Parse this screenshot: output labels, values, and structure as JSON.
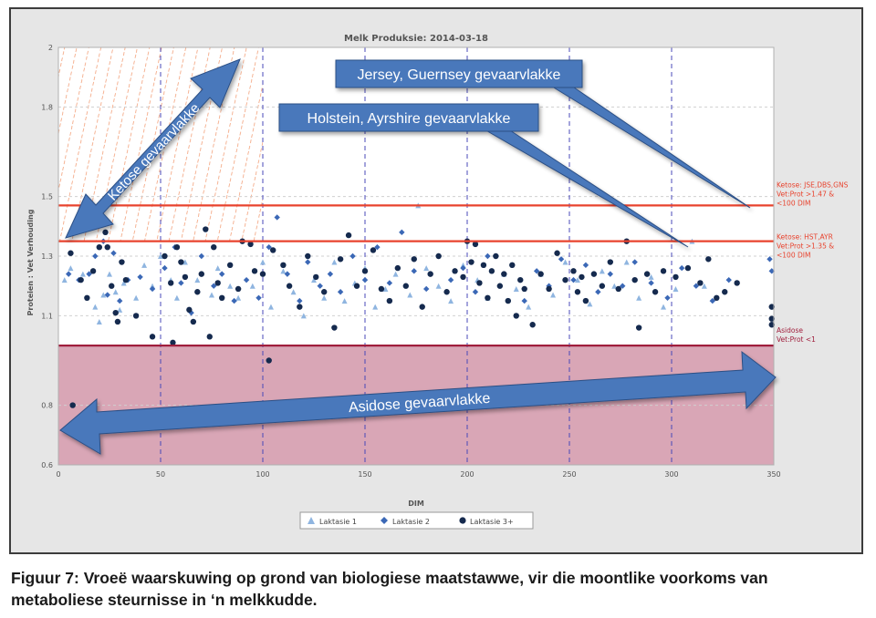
{
  "chart_data": {
    "type": "scatter",
    "title": "Melk Produksie: 2014-03-18",
    "xlabel": "DIM",
    "ylabel": "Proteien : Vet Verhouding",
    "xlim": [
      0,
      350
    ],
    "ylim": [
      0.6,
      2
    ],
    "x_ticks": [
      "0",
      "50",
      "100",
      "150",
      "200",
      "250",
      "300",
      "350"
    ],
    "y_ticks": [
      "0.6",
      "0.8",
      "1.1",
      "1.3",
      "1.5",
      "1.8",
      "2"
    ],
    "grid": true,
    "legend_position": "bottom",
    "reference_lines": [
      {
        "y": 1.47,
        "color": "#e8432e",
        "label_lines": [
          "Ketose: JSE,DBS,GNS",
          "Vet:Prot  >1.47 &",
          "<100 DIM"
        ]
      },
      {
        "y": 1.35,
        "color": "#e8432e",
        "label_lines": [
          "Ketose: HST,AYR",
          "Vet:Prot  >1.35 &",
          "<100 DIM"
        ]
      },
      {
        "y": 1.0,
        "color": "#a01e3c",
        "label_lines": [
          "Asidose",
          "Vet:Prot <1"
        ]
      }
    ],
    "shaded_region": {
      "y_from": 0.6,
      "y_to": 1.0,
      "color": "#d9a6b6"
    },
    "hatched_region": {
      "x_from": 0,
      "x_to": 100,
      "y_from": 1.35,
      "y_to": 2
    },
    "vertical_gridlines": [
      50,
      100,
      150,
      200,
      250,
      300
    ],
    "annotations": [
      {
        "text": "Jersey, Guernsey gevaarvlakke"
      },
      {
        "text": "Holstein, Ayrshire gevaarvlakke"
      },
      {
        "text": "Ketose gevaarvlakke"
      },
      {
        "text": "Asidose gevaarvlakke"
      }
    ],
    "series": [
      {
        "name": "Laktasie 1",
        "marker": "triangle",
        "color": "#8fb5e0",
        "points": [
          [
            3,
            1.22
          ],
          [
            6,
            1.26
          ],
          [
            12,
            1.24
          ],
          [
            18,
            1.13
          ],
          [
            20,
            1.08
          ],
          [
            22,
            1.17
          ],
          [
            25,
            1.24
          ],
          [
            28,
            1.18
          ],
          [
            30,
            1.12
          ],
          [
            32,
            1.21
          ],
          [
            38,
            1.16
          ],
          [
            42,
            1.27
          ],
          [
            46,
            1.2
          ],
          [
            50,
            1.3
          ],
          [
            55,
            1.22
          ],
          [
            58,
            1.16
          ],
          [
            62,
            1.28
          ],
          [
            68,
            1.22
          ],
          [
            75,
            1.17
          ],
          [
            78,
            1.26
          ],
          [
            84,
            1.2
          ],
          [
            88,
            1.16
          ],
          [
            95,
            1.2
          ],
          [
            100,
            1.28
          ],
          [
            104,
            1.13
          ],
          [
            110,
            1.25
          ],
          [
            115,
            1.18
          ],
          [
            120,
            1.1
          ],
          [
            125,
            1.22
          ],
          [
            130,
            1.16
          ],
          [
            135,
            1.28
          ],
          [
            140,
            1.15
          ],
          [
            145,
            1.21
          ],
          [
            150,
            1.26
          ],
          [
            155,
            1.13
          ],
          [
            160,
            1.19
          ],
          [
            165,
            1.24
          ],
          [
            172,
            1.17
          ],
          [
            176,
            1.47
          ],
          [
            180,
            1.26
          ],
          [
            186,
            1.2
          ],
          [
            192,
            1.15
          ],
          [
            198,
            1.27
          ],
          [
            205,
            1.22
          ],
          [
            210,
            1.16
          ],
          [
            218,
            1.24
          ],
          [
            224,
            1.19
          ],
          [
            230,
            1.13
          ],
          [
            236,
            1.24
          ],
          [
            242,
            1.17
          ],
          [
            248,
            1.28
          ],
          [
            254,
            1.22
          ],
          [
            260,
            1.14
          ],
          [
            266,
            1.25
          ],
          [
            272,
            1.2
          ],
          [
            278,
            1.28
          ],
          [
            284,
            1.16
          ],
          [
            290,
            1.23
          ],
          [
            296,
            1.13
          ],
          [
            302,
            1.19
          ],
          [
            310,
            1.35
          ],
          [
            316,
            1.2
          ]
        ]
      },
      {
        "name": "Laktasie 2",
        "marker": "diamond",
        "color": "#3b68b6",
        "points": [
          [
            5,
            1.24
          ],
          [
            10,
            1.22
          ],
          [
            15,
            1.24
          ],
          [
            18,
            1.3
          ],
          [
            22,
            1.35
          ],
          [
            24,
            1.17
          ],
          [
            27,
            1.31
          ],
          [
            30,
            1.15
          ],
          [
            34,
            1.22
          ],
          [
            40,
            1.23
          ],
          [
            46,
            1.19
          ],
          [
            52,
            1.26
          ],
          [
            57,
            1.33
          ],
          [
            60,
            1.21
          ],
          [
            65,
            1.11
          ],
          [
            70,
            1.3
          ],
          [
            76,
            1.2
          ],
          [
            80,
            1.24
          ],
          [
            86,
            1.15
          ],
          [
            92,
            1.22
          ],
          [
            98,
            1.16
          ],
          [
            103,
            1.33
          ],
          [
            107,
            1.43
          ],
          [
            112,
            1.24
          ],
          [
            118,
            1.15
          ],
          [
            122,
            1.28
          ],
          [
            128,
            1.2
          ],
          [
            133,
            1.24
          ],
          [
            138,
            1.18
          ],
          [
            144,
            1.3
          ],
          [
            150,
            1.22
          ],
          [
            156,
            1.33
          ],
          [
            162,
            1.21
          ],
          [
            168,
            1.38
          ],
          [
            174,
            1.25
          ],
          [
            180,
            1.19
          ],
          [
            186,
            1.3
          ],
          [
            192,
            1.22
          ],
          [
            198,
            1.26
          ],
          [
            204,
            1.18
          ],
          [
            210,
            1.3
          ],
          [
            216,
            1.2
          ],
          [
            222,
            1.27
          ],
          [
            228,
            1.15
          ],
          [
            234,
            1.25
          ],
          [
            240,
            1.2
          ],
          [
            246,
            1.29
          ],
          [
            252,
            1.22
          ],
          [
            258,
            1.27
          ],
          [
            264,
            1.18
          ],
          [
            270,
            1.24
          ],
          [
            276,
            1.2
          ],
          [
            282,
            1.28
          ],
          [
            290,
            1.21
          ],
          [
            298,
            1.16
          ],
          [
            305,
            1.26
          ],
          [
            312,
            1.2
          ],
          [
            320,
            1.15
          ],
          [
            328,
            1.22
          ],
          [
            348,
            1.29
          ],
          [
            349,
            1.25
          ]
        ]
      },
      {
        "name": "Laktasie 3+",
        "marker": "circle",
        "color": "#152a4e",
        "points": [
          [
            6,
            1.31
          ],
          [
            7,
            0.8
          ],
          [
            11,
            1.22
          ],
          [
            14,
            1.16
          ],
          [
            17,
            1.25
          ],
          [
            20,
            1.33
          ],
          [
            23,
            1.38
          ],
          [
            24,
            1.33
          ],
          [
            26,
            1.2
          ],
          [
            28,
            1.11
          ],
          [
            29,
            1.08
          ],
          [
            31,
            1.28
          ],
          [
            33,
            1.22
          ],
          [
            38,
            1.1
          ],
          [
            46,
            1.03
          ],
          [
            48,
            0.77
          ],
          [
            52,
            1.3
          ],
          [
            55,
            1.21
          ],
          [
            56,
            1.01
          ],
          [
            58,
            1.33
          ],
          [
            60,
            1.28
          ],
          [
            62,
            1.23
          ],
          [
            64,
            1.12
          ],
          [
            66,
            1.08
          ],
          [
            68,
            1.18
          ],
          [
            70,
            1.24
          ],
          [
            72,
            1.39
          ],
          [
            74,
            1.03
          ],
          [
            76,
            1.33
          ],
          [
            78,
            1.21
          ],
          [
            80,
            1.16
          ],
          [
            84,
            1.27
          ],
          [
            88,
            1.19
          ],
          [
            90,
            1.35
          ],
          [
            94,
            1.34
          ],
          [
            96,
            1.25
          ],
          [
            100,
            1.24
          ],
          [
            103,
            0.95
          ],
          [
            105,
            1.32
          ],
          [
            110,
            1.27
          ],
          [
            113,
            1.2
          ],
          [
            118,
            1.13
          ],
          [
            122,
            1.3
          ],
          [
            126,
            1.23
          ],
          [
            130,
            1.18
          ],
          [
            135,
            1.06
          ],
          [
            138,
            1.29
          ],
          [
            142,
            1.37
          ],
          [
            146,
            1.2
          ],
          [
            150,
            1.25
          ],
          [
            154,
            1.32
          ],
          [
            158,
            1.19
          ],
          [
            162,
            1.15
          ],
          [
            166,
            1.26
          ],
          [
            170,
            1.2
          ],
          [
            174,
            1.29
          ],
          [
            178,
            1.13
          ],
          [
            182,
            1.24
          ],
          [
            186,
            1.3
          ],
          [
            190,
            1.18
          ],
          [
            194,
            1.25
          ],
          [
            198,
            1.23
          ],
          [
            200,
            1.35
          ],
          [
            202,
            1.28
          ],
          [
            204,
            1.34
          ],
          [
            206,
            1.21
          ],
          [
            208,
            1.27
          ],
          [
            210,
            1.16
          ],
          [
            212,
            1.25
          ],
          [
            214,
            1.3
          ],
          [
            216,
            1.2
          ],
          [
            218,
            1.24
          ],
          [
            220,
            1.15
          ],
          [
            222,
            1.27
          ],
          [
            224,
            1.1
          ],
          [
            226,
            1.22
          ],
          [
            228,
            1.19
          ],
          [
            232,
            1.07
          ],
          [
            236,
            1.24
          ],
          [
            240,
            1.19
          ],
          [
            244,
            1.31
          ],
          [
            248,
            1.22
          ],
          [
            252,
            1.25
          ],
          [
            254,
            1.18
          ],
          [
            256,
            1.23
          ],
          [
            258,
            1.15
          ],
          [
            262,
            1.24
          ],
          [
            266,
            1.2
          ],
          [
            270,
            1.28
          ],
          [
            274,
            1.19
          ],
          [
            278,
            1.35
          ],
          [
            282,
            1.22
          ],
          [
            284,
            1.06
          ],
          [
            288,
            1.24
          ],
          [
            292,
            1.18
          ],
          [
            296,
            1.25
          ],
          [
            302,
            1.23
          ],
          [
            308,
            1.26
          ],
          [
            314,
            1.21
          ],
          [
            318,
            1.29
          ],
          [
            322,
            1.16
          ],
          [
            326,
            1.18
          ],
          [
            332,
            1.21
          ],
          [
            349,
            1.13
          ],
          [
            349,
            1.09
          ],
          [
            349,
            1.07
          ]
        ]
      }
    ]
  },
  "caption": {
    "line1": "Figuur 7: Vroeë waarskuwing op grond van biologiese maatstawwe, vir die moontlike voorkoms van",
    "line2": "metaboliese steurnisse in ‘n melkkudde."
  },
  "colors": {
    "frame_bg": "#e6e6e6",
    "plot_bg": "#ffffff",
    "arrow_fill": "#4a78bb",
    "arrow_stroke": "#2c4f85",
    "hatch": "#f08a5a",
    "vline": "#4848b8"
  }
}
